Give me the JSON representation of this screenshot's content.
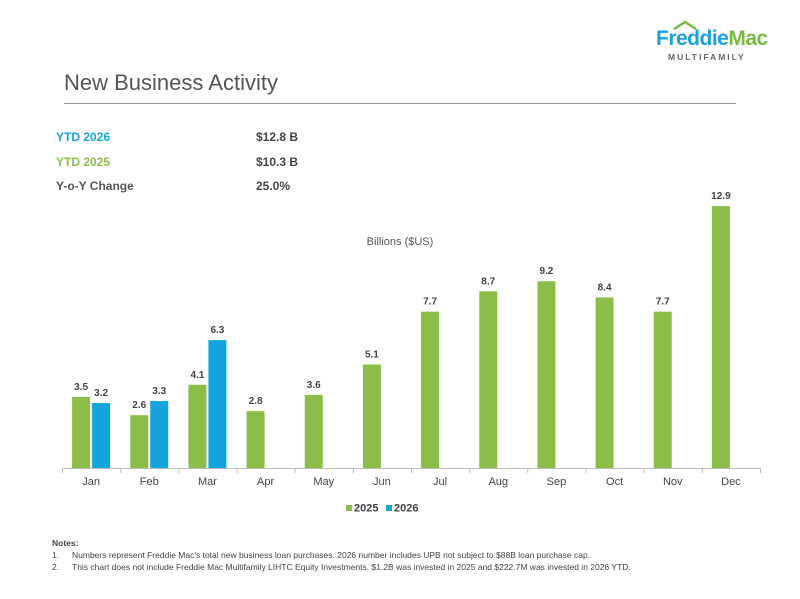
{
  "logo": {
    "brand_a": "Freddie",
    "brand_b": "Mac",
    "sub": "MULTIFAMILY"
  },
  "title": "New Business Activity",
  "kpis": [
    {
      "label": "YTD 2026",
      "value": "$12.8 B",
      "color": "#14a3dc"
    },
    {
      "label": "YTD 2025",
      "value": "$10.3 B",
      "color": "#8bbd48"
    },
    {
      "label": "Y-o-Y Change",
      "value": "25.0%",
      "color": "#555555"
    }
  ],
  "chart_data": {
    "type": "bar",
    "title": "Billions ($US)",
    "categories": [
      "Jan",
      "Feb",
      "Mar",
      "Apr",
      "May",
      "Jun",
      "Jul",
      "Aug",
      "Sep",
      "Oct",
      "Nov",
      "Dec"
    ],
    "series": [
      {
        "name": "2025",
        "color": "#8bbd48",
        "values": [
          3.5,
          2.6,
          4.1,
          2.8,
          3.6,
          5.1,
          7.7,
          8.7,
          9.2,
          8.4,
          7.7,
          12.9
        ]
      },
      {
        "name": "2026",
        "color": "#14a3dc",
        "values": [
          3.2,
          3.3,
          6.3,
          null,
          null,
          null,
          null,
          null,
          null,
          null,
          null,
          null
        ]
      }
    ],
    "ylim": [
      0,
      13.2
    ],
    "legend": "bottom",
    "grid": false
  },
  "notes": {
    "heading": "Notes:",
    "items": [
      {
        "num": "1.",
        "text": "Numbers represent Freddie Mac's total new business loan purchases. 2026 number includes UPB not subject to $88B loan purchase cap."
      },
      {
        "num": "2.",
        "text": "This chart does not include Freddie Mac Multifamily LIHTC Equity Investments. $1.2B was invested in 2025 and $222.7M was invested in 2026 YTD."
      }
    ]
  }
}
